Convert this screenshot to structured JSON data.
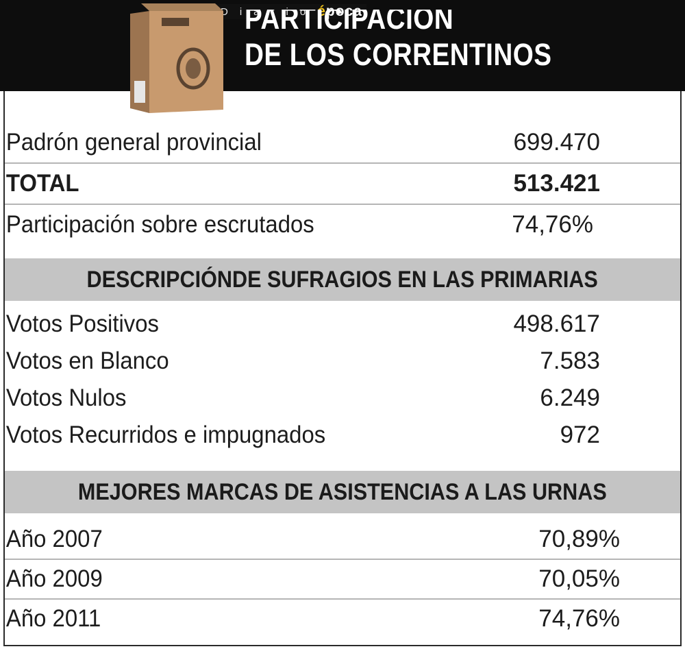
{
  "header": {
    "brand_diario": "Diario",
    "brand_epoca_initial": "é",
    "brand_epoca_rest": "poca",
    "title_line1": "PARTICIPACIÓN",
    "title_line2": "DE LOS CORRENTINOS"
  },
  "summary": [
    {
      "label": "Padrón general provincial",
      "value": "699.470"
    },
    {
      "label": "TOTAL",
      "value": "513.421"
    },
    {
      "label": "Participación sobre escrutados",
      "value": "74,76%"
    }
  ],
  "section1": {
    "title": "DESCRIPCIÓNDE SUFRAGIOS EN LAS PRIMARIAS",
    "rows": [
      {
        "label": "Votos Positivos",
        "value": "498.617"
      },
      {
        "label": "Votos en Blanco",
        "value": "7.583"
      },
      {
        "label": "Votos Nulos",
        "value": "6.249"
      },
      {
        "label": "Votos Recurridos e impugnados",
        "value": "972"
      }
    ]
  },
  "section2": {
    "title": "MEJORES MARCAS DE ASISTENCIAS A LAS URNAS",
    "rows": [
      {
        "label": "Año 2007",
        "value": "70,89%"
      },
      {
        "label": "Año 2009",
        "value": "70,05%"
      },
      {
        "label": "Año 2011",
        "value": "74,76%"
      }
    ]
  },
  "colors": {
    "header_bg": "#0d0d0d",
    "section_bar": "#c4c4c4",
    "brand_accent": "#f2c31b",
    "ballot_box": "#c89a6e"
  }
}
